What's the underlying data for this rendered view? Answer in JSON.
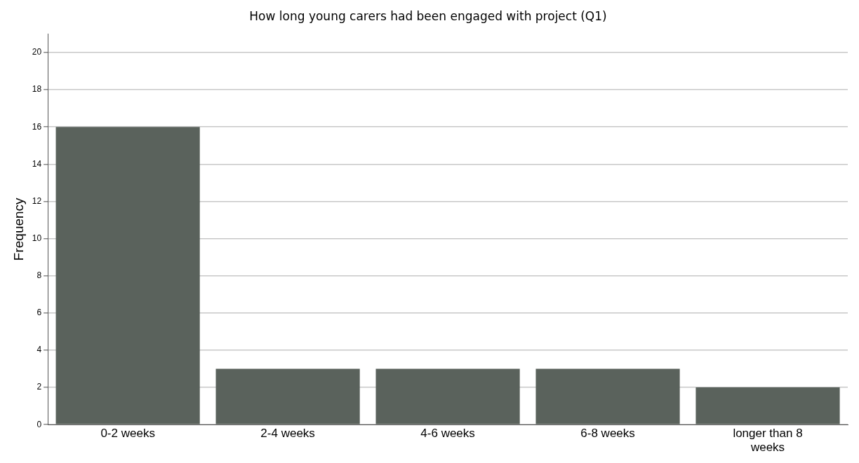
{
  "chart_data": {
    "type": "bar",
    "title": "How long young carers had been engaged with project (Q1)",
    "ylabel": "Frequency",
    "categories": [
      "0-2 weeks",
      "2-4 weeks",
      "4-6 weeks",
      "6-8 weeks",
      "longer than 8 weeks"
    ],
    "values": [
      16,
      3,
      3,
      3,
      2
    ],
    "color": "#5a625c",
    "ylim": [
      0,
      21
    ],
    "yticks": [
      0,
      2,
      4,
      6,
      8,
      10,
      12,
      14,
      16,
      18,
      20
    ],
    "grid": "y"
  }
}
